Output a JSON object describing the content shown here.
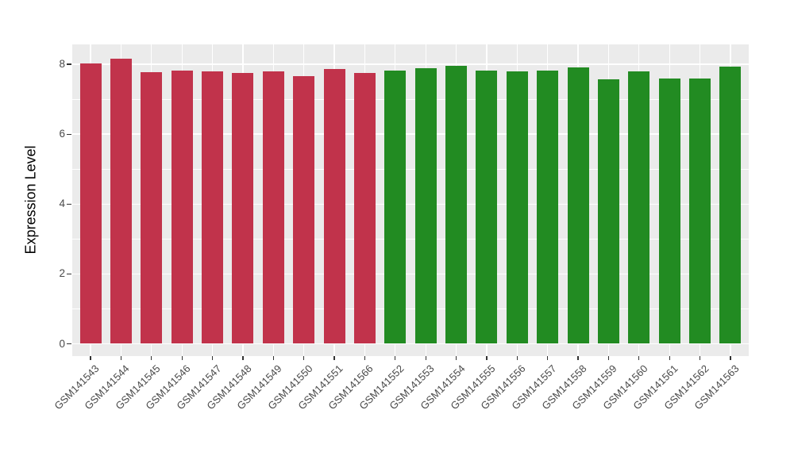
{
  "figure": {
    "background": "#FFFFFF",
    "axis_text_color": "#4a4a4a",
    "tick_mark_color": "#333333"
  },
  "chart_data": {
    "type": "bar",
    "title": "",
    "xlabel": "",
    "ylabel": "Expression Level",
    "ylim": [
      0,
      8.56
    ],
    "yticks": [
      0,
      2,
      4,
      6,
      8
    ],
    "grid": true,
    "legend_position": "none",
    "panel_background": "#EBEBEB",
    "grid_color": "#FFFFFF",
    "categories": [
      "GSM141543",
      "GSM141544",
      "GSM141545",
      "GSM141546",
      "GSM141547",
      "GSM141548",
      "GSM141549",
      "GSM141550",
      "GSM141551",
      "GSM141566",
      "GSM141552",
      "GSM141553",
      "GSM141554",
      "GSM141555",
      "GSM141556",
      "GSM141557",
      "GSM141558",
      "GSM141559",
      "GSM141560",
      "GSM141561",
      "GSM141562",
      "GSM141563"
    ],
    "values": [
      8.02,
      8.15,
      7.77,
      7.82,
      7.79,
      7.74,
      7.8,
      7.67,
      7.87,
      7.76,
      7.81,
      7.89,
      7.96,
      7.82,
      7.79,
      7.81,
      7.9,
      7.58,
      7.79,
      7.6,
      7.6,
      7.94
    ],
    "groups": [
      "red",
      "red",
      "red",
      "red",
      "red",
      "red",
      "red",
      "red",
      "red",
      "red",
      "green",
      "green",
      "green",
      "green",
      "green",
      "green",
      "green",
      "green",
      "green",
      "green",
      "green",
      "green"
    ],
    "group_colors": {
      "red": "#C1334B",
      "green": "#228B22"
    }
  }
}
